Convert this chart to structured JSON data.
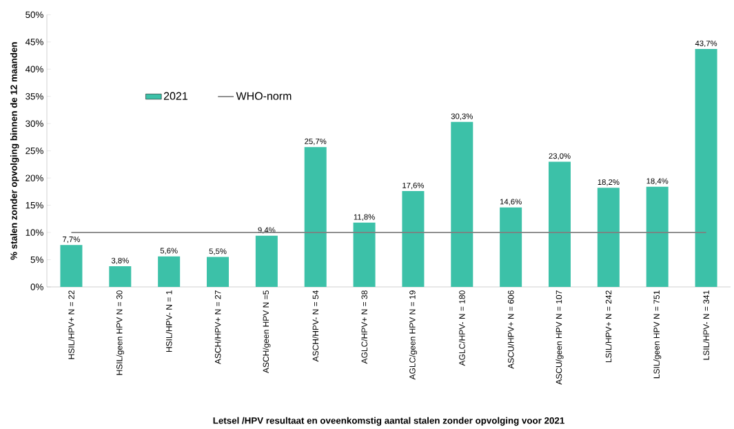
{
  "chart_data": {
    "type": "bar",
    "xlabel": "Letsel /HPV resultaat en oveenkomstig aantal stalen zonder opvolging voor 2021",
    "ylabel": "% stalen zonder opvolging binnen de 12 maanden",
    "categories": [
      "HSIL/HPV+ N = 22",
      "HSIL/geen HPV N = 30",
      "HSIL/HPV- N = 1",
      "ASCH/HPV+ N = 27",
      "ASCH/geen HPV N =5",
      "ASCH/HPV- N = 54",
      "AGLC/HPV+ N = 38",
      "AGLC/geen HPV N = 19",
      "AGLC/HPV- N = 180",
      "ASCU/HPV+ N = 606",
      "ASCU/geen HPV N = 107",
      "LSIL/HPV+ N = 242",
      "LSIL/geen HPV N = 751",
      "LSIL/HPV- N = 341"
    ],
    "series": [
      {
        "name": "2021",
        "color": "#3cc1a8",
        "values": [
          7.7,
          3.8,
          5.6,
          5.5,
          9.4,
          25.7,
          11.8,
          17.6,
          30.3,
          14.6,
          23.0,
          18.2,
          18.4,
          43.7
        ],
        "value_labels": [
          "7,7%",
          "3,8%",
          "5,6%",
          "5,5%",
          "9,4%",
          "25,7%",
          "11,8%",
          "17,6%",
          "30,3%",
          "14,6%",
          "23,0%",
          "18,2%",
          "18,4%",
          "43,7%"
        ]
      },
      {
        "name": "WHO-norm",
        "type": "line",
        "color": "#7f7f7f",
        "values": [
          10,
          10,
          10,
          10,
          10,
          10,
          10,
          10,
          10,
          10,
          10,
          10,
          10,
          10
        ]
      }
    ],
    "ylim": [
      0,
      50
    ],
    "yticks": [
      {
        "value": 0,
        "label": "0%"
      },
      {
        "value": 5,
        "label": "5%"
      },
      {
        "value": 10,
        "label": "10%"
      },
      {
        "value": 15,
        "label": "15%"
      },
      {
        "value": 20,
        "label": "20%"
      },
      {
        "value": 25,
        "label": "25%"
      },
      {
        "value": 30,
        "label": "30%"
      },
      {
        "value": 35,
        "label": "35%"
      },
      {
        "value": 40,
        "label": "40%"
      },
      {
        "value": 45,
        "label": "45%"
      },
      {
        "value": 50,
        "label": "50%"
      }
    ],
    "legend": "top left",
    "grid": false,
    "marker": "none"
  }
}
